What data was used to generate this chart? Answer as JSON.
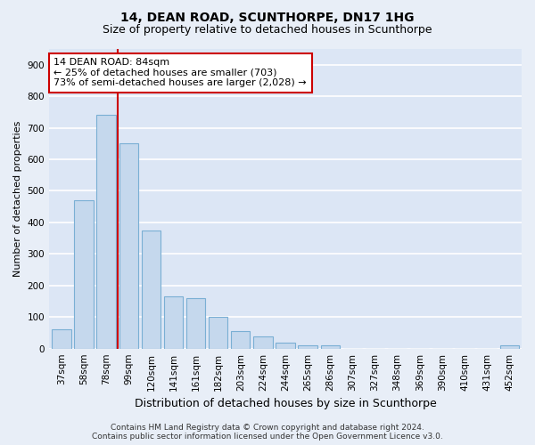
{
  "title1": "14, DEAN ROAD, SCUNTHORPE, DN17 1HG",
  "title2": "Size of property relative to detached houses in Scunthorpe",
  "xlabel": "Distribution of detached houses by size in Scunthorpe",
  "ylabel": "Number of detached properties",
  "footer1": "Contains HM Land Registry data © Crown copyright and database right 2024.",
  "footer2": "Contains public sector information licensed under the Open Government Licence v3.0.",
  "categories": [
    "37sqm",
    "58sqm",
    "78sqm",
    "99sqm",
    "120sqm",
    "141sqm",
    "161sqm",
    "182sqm",
    "203sqm",
    "224sqm",
    "244sqm",
    "265sqm",
    "286sqm",
    "307sqm",
    "327sqm",
    "348sqm",
    "369sqm",
    "390sqm",
    "410sqm",
    "431sqm",
    "452sqm"
  ],
  "values": [
    60,
    470,
    740,
    650,
    375,
    165,
    160,
    100,
    55,
    40,
    20,
    10,
    10,
    0,
    0,
    0,
    0,
    0,
    0,
    0,
    10
  ],
  "bar_color": "#c5d8ed",
  "bar_edge_color": "#7aafd4",
  "vline_x": 2.5,
  "vline_color": "#cc0000",
  "annotation_text": "14 DEAN ROAD: 84sqm\n← 25% of detached houses are smaller (703)\n73% of semi-detached houses are larger (2,028) →",
  "annotation_box_facecolor": "#ffffff",
  "annotation_box_edgecolor": "#cc0000",
  "ylim": [
    0,
    950
  ],
  "yticks": [
    0,
    100,
    200,
    300,
    400,
    500,
    600,
    700,
    800,
    900
  ],
  "fig_bg_color": "#e8eef7",
  "plot_bg_color": "#dce6f5",
  "grid_color": "#ffffff",
  "title1_fontsize": 10,
  "title2_fontsize": 9,
  "ylabel_fontsize": 8,
  "xlabel_fontsize": 9,
  "tick_fontsize": 7.5,
  "annotation_fontsize": 8,
  "footer_fontsize": 6.5
}
